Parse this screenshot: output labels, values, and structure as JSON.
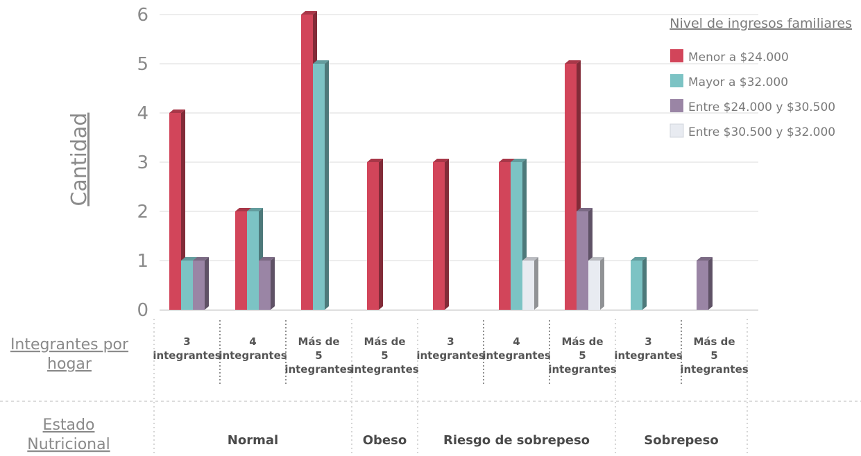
{
  "chart_data": {
    "type": "bar",
    "title": "",
    "ylabel": "Cantidad",
    "ylim": [
      0,
      6
    ],
    "yticks": [
      0,
      1,
      2,
      3,
      4,
      5,
      6
    ],
    "grid": true,
    "legend": {
      "title": "Nivel de ingresos familiares",
      "placement": "top-right"
    },
    "row_headers": {
      "subcategory": [
        "Integrantes por",
        "hogar"
      ],
      "group": [
        "Estado",
        "Nutricional"
      ]
    },
    "categories": [
      {
        "group": "Normal",
        "label": [
          "3",
          "integrantes"
        ]
      },
      {
        "group": "Normal",
        "label": [
          "4",
          "integrantes"
        ]
      },
      {
        "group": "Normal",
        "label": [
          "Más de",
          "5",
          "integrantes"
        ]
      },
      {
        "group": "Obeso",
        "label": [
          "Más de",
          "5",
          "integrantes"
        ]
      },
      {
        "group": "Riesgo de sobrepeso",
        "label": [
          "3",
          "integrantes"
        ]
      },
      {
        "group": "Riesgo de sobrepeso",
        "label": [
          "4",
          "integrantes"
        ]
      },
      {
        "group": "Riesgo de sobrepeso",
        "label": [
          "Más de",
          "5",
          "integrantes"
        ]
      },
      {
        "group": "Sobrepeso",
        "label": [
          "3",
          "integrantes"
        ]
      },
      {
        "group": "Sobrepeso",
        "label": [
          "Más de",
          "5",
          "integrantes"
        ]
      }
    ],
    "groups": [
      {
        "name": "Normal",
        "count": 3
      },
      {
        "name": "Obeso",
        "count": 1
      },
      {
        "name": "Riesgo de sobrepeso",
        "count": 3
      },
      {
        "name": "Sobrepeso",
        "count": 2
      }
    ],
    "series": [
      {
        "name": "Menor a $24.000",
        "color": "#d2455a",
        "values": [
          4,
          2,
          6,
          3,
          3,
          3,
          5,
          null,
          null
        ]
      },
      {
        "name": "Mayor a $32.000",
        "color": "#7cc3c4",
        "values": [
          1,
          2,
          5,
          null,
          null,
          3,
          null,
          1,
          null
        ]
      },
      {
        "name": "Entre $24.000 y $30.500",
        "color": "#9a85a5",
        "values": [
          1,
          1,
          null,
          null,
          null,
          null,
          2,
          null,
          1
        ]
      },
      {
        "name": "Entre $30.500 y $32.000",
        "color": "#e8ebf1",
        "values": [
          null,
          null,
          null,
          null,
          null,
          1,
          1,
          null,
          null
        ]
      }
    ]
  }
}
